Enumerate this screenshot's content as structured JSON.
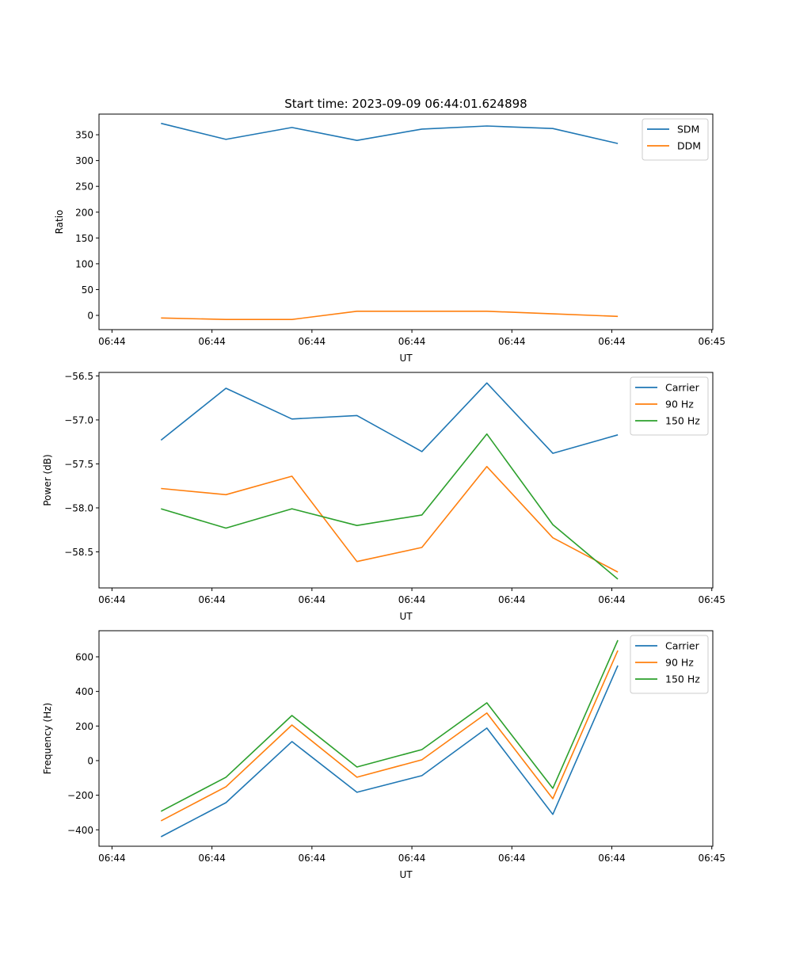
{
  "colors": {
    "c0": "#1f77b4",
    "c1": "#ff7f0e",
    "c2": "#2ca02c"
  },
  "chart_data": [
    {
      "type": "line",
      "title": "Start time: 2023-09-09 06:44:01.624898",
      "xlabel": "UT",
      "ylabel": "Ratio",
      "x": [
        0.49,
        1.14,
        1.8,
        2.45,
        3.1,
        3.75,
        4.41,
        5.06
      ],
      "xticks": [
        0,
        1,
        2,
        3,
        4,
        5,
        6
      ],
      "xtick_labels": [
        "06:44",
        "06:44",
        "06:44",
        "06:44",
        "06:44",
        "06:44",
        "06:45"
      ],
      "xlim": [
        -0.13,
        6.01
      ],
      "ylim": [
        -27.6,
        390
      ],
      "yticks": [
        0,
        50,
        100,
        150,
        200,
        250,
        300,
        350
      ],
      "ytick_labels": [
        "0",
        "50",
        "100",
        "150",
        "200",
        "250",
        "300",
        "350"
      ],
      "legend": "top-right",
      "series": [
        {
          "name": "SDM",
          "color": "#1f77b4",
          "values": [
            372,
            341,
            364,
            339,
            361,
            367,
            362,
            333
          ]
        },
        {
          "name": "DDM",
          "color": "#ff7f0e",
          "values": [
            -5,
            -8,
            -8,
            8,
            8,
            8,
            3,
            -2
          ]
        }
      ]
    },
    {
      "type": "line",
      "title": "",
      "xlabel": "UT",
      "ylabel": "Power (dB)",
      "x": [
        0.49,
        1.14,
        1.8,
        2.45,
        3.1,
        3.75,
        4.41,
        5.06
      ],
      "xticks": [
        0,
        1,
        2,
        3,
        4,
        5,
        6
      ],
      "xtick_labels": [
        "06:44",
        "06:44",
        "06:44",
        "06:44",
        "06:44",
        "06:44",
        "06:45"
      ],
      "xlim": [
        -0.13,
        6.01
      ],
      "ylim": [
        -58.91,
        -56.46
      ],
      "yticks": [
        -58.5,
        -58.0,
        -57.5,
        -57.0,
        -56.5
      ],
      "ytick_labels": [
        "−58.5",
        "−58.0",
        "−57.5",
        "−57.0",
        "−56.5"
      ],
      "legend": "top-right",
      "series": [
        {
          "name": "Carrier",
          "color": "#1f77b4",
          "values": [
            -57.23,
            -56.64,
            -56.99,
            -56.95,
            -57.36,
            -56.58,
            -57.38,
            -57.17
          ]
        },
        {
          "name": "90 Hz",
          "color": "#ff7f0e",
          "values": [
            -57.78,
            -57.85,
            -57.64,
            -58.61,
            -58.45,
            -57.53,
            -58.34,
            -58.73
          ]
        },
        {
          "name": "150 Hz",
          "color": "#2ca02c",
          "values": [
            -58.01,
            -58.23,
            -58.01,
            -58.2,
            -58.08,
            -57.16,
            -58.19,
            -58.81
          ]
        }
      ]
    },
    {
      "type": "line",
      "title": "",
      "xlabel": "UT",
      "ylabel": "Frequency (Hz)",
      "x": [
        0.49,
        1.14,
        1.8,
        2.45,
        3.1,
        3.75,
        4.41,
        5.06
      ],
      "xticks": [
        0,
        1,
        2,
        3,
        4,
        5,
        6
      ],
      "xtick_labels": [
        "06:44",
        "06:44",
        "06:44",
        "06:44",
        "06:44",
        "06:44",
        "06:45"
      ],
      "xlim": [
        -0.13,
        6.01
      ],
      "ylim": [
        -495,
        751
      ],
      "yticks": [
        -400,
        -200,
        0,
        200,
        400,
        600
      ],
      "ytick_labels": [
        "−400",
        "−200",
        "0",
        "200",
        "400",
        "600"
      ],
      "legend": "top-right",
      "series": [
        {
          "name": "Carrier",
          "color": "#1f77b4",
          "values": [
            -440,
            -243,
            110,
            -183,
            -87,
            188,
            -311,
            550
          ]
        },
        {
          "name": "90 Hz",
          "color": "#ff7f0e",
          "values": [
            -348,
            -151,
            206,
            -96,
            5,
            275,
            -220,
            637
          ]
        },
        {
          "name": "150 Hz",
          "color": "#2ca02c",
          "values": [
            -293,
            -96,
            261,
            -37,
            64,
            334,
            -160,
            696
          ]
        }
      ]
    }
  ]
}
